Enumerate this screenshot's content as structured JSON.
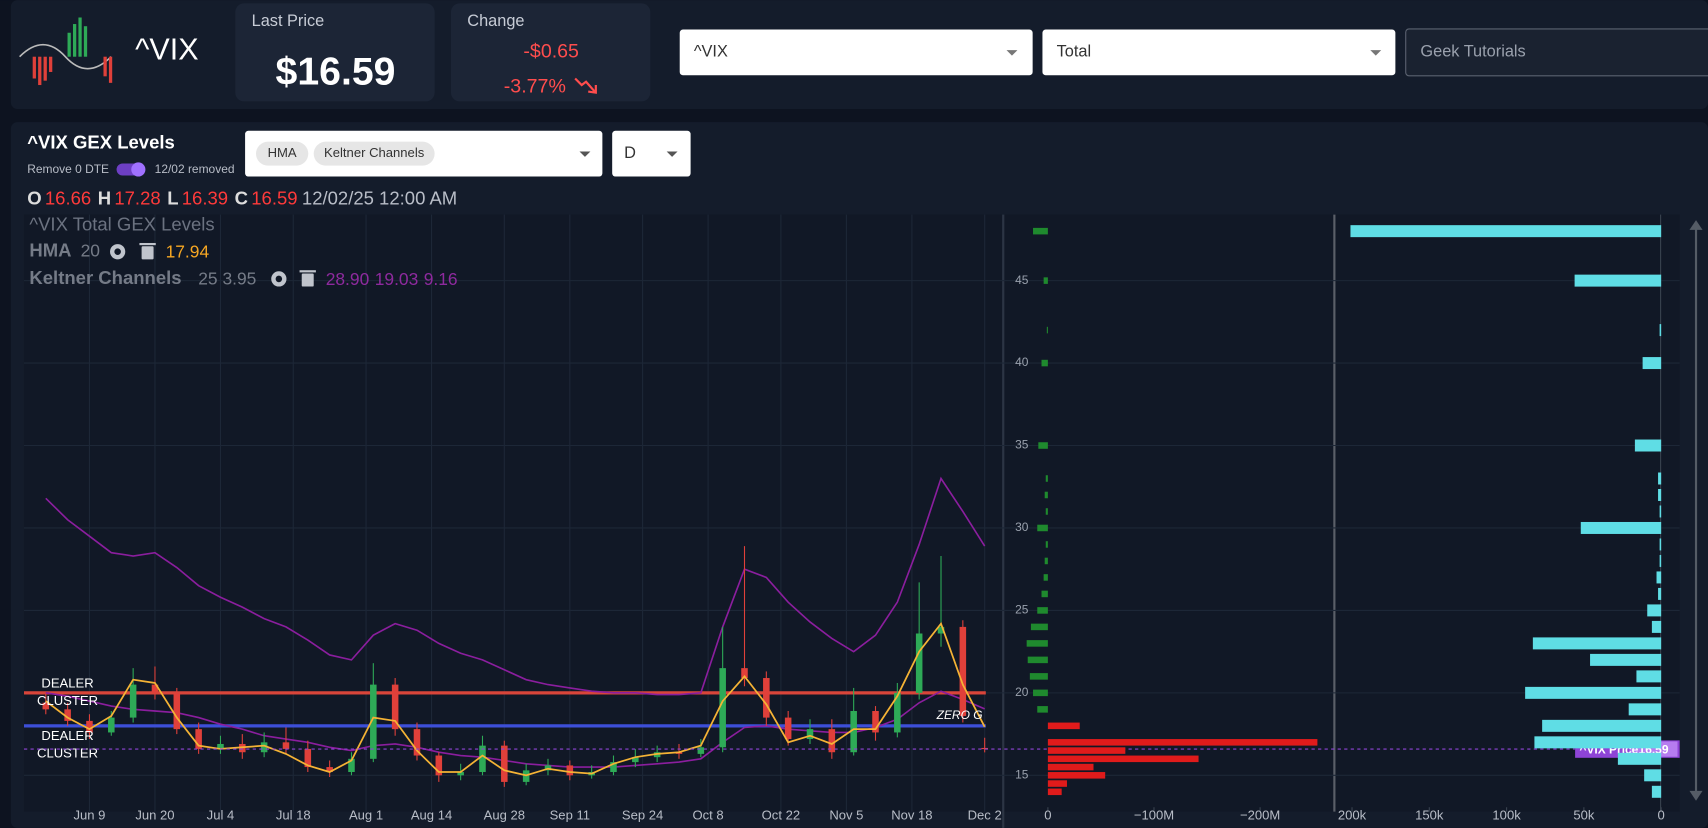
{
  "header": {
    "symbol": "^VIX",
    "last_price_label": "Last Price",
    "last_price": "$16.59",
    "change_label": "Change",
    "change": "-$0.65",
    "change_pct": "-3.77%",
    "symbol_select": "^VIX",
    "gex_select": "Total",
    "tutorials": "Geek Tutorials"
  },
  "panel": {
    "title": "^VIX GEX Levels",
    "toggle_label": "Remove 0 DTE",
    "toggle_note": "12/02 removed",
    "indicators": [
      "HMA",
      "Keltner Channels"
    ],
    "interval": "D"
  },
  "ohlc": {
    "labels": [
      "O",
      "H",
      "L",
      "C"
    ],
    "values": [
      16.66,
      17.28,
      16.39,
      16.59
    ],
    "date": "12/02/25 12:00 AM"
  },
  "legend": {
    "title": "^VIX Total GEX Levels",
    "hma": {
      "name": "HMA",
      "params": "20",
      "value": 17.94
    },
    "keltner": {
      "name": "Keltner Channels",
      "params": "25 3.95",
      "values": [
        28.9,
        19.03,
        9.16
      ],
      "value_labels": [
        "28.90",
        "19.03",
        "9.16"
      ]
    }
  },
  "price_chart": {
    "type": "candlestick",
    "x": [
      -6,
      -3,
      0,
      3,
      6,
      9,
      12,
      15,
      18,
      21,
      24,
      27,
      30,
      33,
      36,
      39,
      42,
      45,
      48,
      51,
      54,
      57,
      60,
      63,
      66,
      69,
      72,
      75,
      78,
      81,
      84,
      87,
      90,
      93,
      96,
      99,
      102,
      105,
      108,
      111,
      114,
      117,
      120,
      123
    ],
    "open": [
      19.4,
      19.0,
      18.3,
      17.6,
      18.5,
      20.5,
      20.0,
      17.8,
      16.6,
      16.9,
      16.4,
      17.0,
      16.6,
      15.5,
      15.2,
      16.0,
      20.5,
      17.8,
      16.2,
      15.0,
      15.2,
      16.8,
      14.6,
      15.3,
      15.6,
      15.0,
      15.2,
      15.8,
      16.1,
      16.4,
      16.3,
      16.7,
      21.5,
      20.9,
      18.5,
      17.2,
      17.8,
      16.4,
      18.9,
      17.6,
      20.0,
      23.6,
      24.0,
      16.66
    ],
    "high": [
      19.9,
      19.4,
      18.7,
      18.9,
      21.5,
      21.6,
      20.3,
      18.2,
      17.4,
      17.5,
      17.6,
      17.9,
      17.1,
      15.9,
      16.4,
      21.8,
      20.9,
      18.2,
      16.4,
      15.7,
      17.4,
      17.1,
      15.7,
      16.0,
      15.9,
      15.6,
      16.2,
      16.6,
      16.8,
      16.9,
      17.2,
      24.0,
      28.9,
      21.3,
      18.9,
      18.4,
      18.4,
      20.3,
      19.2,
      20.6,
      26.7,
      28.3,
      24.4,
      17.28
    ],
    "low": [
      18.7,
      18.0,
      17.2,
      17.4,
      18.2,
      19.6,
      17.5,
      16.3,
      16.3,
      16.0,
      16.1,
      16.3,
      15.2,
      14.9,
      15.0,
      15.8,
      17.4,
      15.9,
      14.6,
      14.7,
      15.0,
      14.3,
      14.4,
      15.0,
      14.7,
      14.8,
      15.0,
      15.5,
      15.8,
      16.0,
      16.1,
      16.4,
      20.4,
      18.0,
      16.8,
      16.9,
      16.0,
      16.2,
      17.1,
      17.3,
      19.6,
      22.8,
      18.2,
      16.39
    ],
    "close": [
      19.0,
      18.3,
      17.6,
      18.5,
      20.5,
      20.0,
      17.8,
      16.6,
      16.9,
      16.4,
      17.0,
      16.6,
      15.5,
      15.2,
      16.0,
      20.5,
      17.8,
      16.2,
      15.0,
      15.2,
      16.8,
      14.6,
      15.3,
      15.6,
      15.0,
      15.2,
      15.8,
      16.1,
      16.4,
      16.3,
      16.7,
      21.5,
      20.9,
      18.5,
      17.2,
      17.8,
      16.4,
      18.9,
      17.6,
      20.0,
      23.6,
      24.0,
      18.6,
      16.59
    ],
    "up_color": "#2eaa57",
    "down_color": "#e0403a",
    "hma": {
      "color": "#f5b335",
      "values": [
        19.5,
        18.5,
        17.8,
        18.6,
        20.8,
        20.6,
        18.5,
        16.8,
        16.6,
        16.7,
        16.8,
        16.3,
        15.6,
        15.2,
        15.9,
        18.5,
        18.3,
        16.5,
        15.2,
        15.2,
        16.2,
        15.3,
        15.0,
        15.4,
        15.2,
        15.1,
        15.7,
        16.1,
        16.3,
        16.4,
        16.8,
        19.5,
        21.0,
        19.3,
        17.0,
        17.4,
        16.9,
        17.8,
        17.8,
        19.8,
        22.5,
        24.2,
        20.5,
        17.94
      ]
    },
    "keltner_upper": {
      "color": "#8b1e9e",
      "values": [
        31.8,
        30.5,
        29.5,
        28.5,
        28.3,
        28.5,
        27.6,
        26.5,
        25.8,
        25.2,
        24.5,
        24.0,
        23.2,
        22.3,
        22.0,
        23.5,
        24.2,
        23.8,
        23.0,
        22.4,
        22.0,
        21.4,
        20.8,
        20.5,
        20.3,
        20.1,
        20.0,
        20.0,
        19.9,
        19.9,
        20.0,
        24.0,
        27.5,
        27.0,
        25.5,
        24.3,
        23.3,
        22.5,
        23.5,
        25.5,
        29.0,
        33.0,
        31.0,
        28.9
      ]
    },
    "keltner_middle": {
      "color": "#8b1e9e",
      "values": [
        20.0,
        19.8,
        19.5,
        19.2,
        19.0,
        18.9,
        18.8,
        18.5,
        18.1,
        17.8,
        17.4,
        17.2,
        17.0,
        16.7,
        16.5,
        16.8,
        16.9,
        16.7,
        16.4,
        16.2,
        16.1,
        15.9,
        15.7,
        15.6,
        15.5,
        15.5,
        15.5,
        15.6,
        15.7,
        15.8,
        16.0,
        17.0,
        17.9,
        18.0,
        17.8,
        17.7,
        17.6,
        17.6,
        17.9,
        18.4,
        19.4,
        20.1,
        19.6,
        19.03
      ]
    },
    "xlim": [
      -9,
      125.4
    ],
    "xticks": [
      {
        "value": 0,
        "label": "Jun 9"
      },
      {
        "value": 9,
        "label": "Jun 20"
      },
      {
        "value": 18,
        "label": "Jul 4"
      },
      {
        "value": 28,
        "label": "Jul 18"
      },
      {
        "value": 38,
        "label": "Aug 1"
      },
      {
        "value": 47,
        "label": "Aug 14"
      },
      {
        "value": 57,
        "label": "Aug 28"
      },
      {
        "value": 66,
        "label": "Sep 11"
      },
      {
        "value": 76,
        "label": "Sep 24"
      },
      {
        "value": 85,
        "label": "Oct 8"
      },
      {
        "value": 95,
        "label": "Oct 22"
      },
      {
        "value": 104,
        "label": "Nov 5"
      },
      {
        "value": 113,
        "label": "Nov 18"
      },
      {
        "value": 123,
        "label": "Dec 2"
      }
    ],
    "ylim": [
      12.8,
      49
    ],
    "yticks": [
      15,
      20,
      25,
      30,
      35,
      40,
      45
    ],
    "levels": [
      {
        "value": 20,
        "color": "#d9453a",
        "label": [
          "DEALER",
          "CLUSTER"
        ]
      },
      {
        "value": 18,
        "color": "#3d4fd8",
        "label": [
          "ZERO G"
        ]
      }
    ],
    "notes": [
      [
        "DEALER",
        "CLUSTER"
      ]
    ],
    "price_marker": {
      "label": "^VIX Price",
      "value": 16.59,
      "color": "#8e44d6"
    }
  },
  "gex": {
    "net": {
      "strikes": [
        48,
        45,
        42,
        40,
        35,
        33,
        32,
        31,
        30,
        29,
        28,
        27,
        26,
        25,
        24,
        23,
        22,
        21,
        20,
        19,
        18,
        17,
        16.5,
        16,
        15.5,
        15,
        14.5,
        14
      ],
      "values": [
        14000000,
        4000000,
        1000000,
        6000000,
        9000000,
        2000000,
        3000000,
        2000000,
        10000000,
        2000000,
        3000000,
        4000000,
        6000000,
        10000000,
        16000000,
        20000000,
        19000000,
        17000000,
        14000000,
        10000000,
        -30000000,
        -254000000,
        -73000000,
        -142000000,
        -43000000,
        -54000000,
        -18000000,
        -13000000
      ],
      "positive_color": "#1f8a2e",
      "negative_color": "#e01b1b",
      "xlim": [
        39000000,
        -270000000
      ],
      "xticks": [
        0,
        {
          "value": -100000000,
          "label": "−100M"
        },
        {
          "value": -200000000,
          "label": "−200M"
        }
      ]
    },
    "open_interest": {
      "strikes": [
        48,
        45,
        42,
        40,
        35,
        33,
        32,
        31,
        30,
        29,
        28,
        27,
        26,
        25,
        24,
        23,
        22,
        21,
        20,
        19,
        18,
        17,
        16,
        15,
        14
      ],
      "values": [
        201000,
        56000,
        1000,
        12000,
        17000,
        2000,
        2000,
        1000,
        52000,
        1000,
        1000,
        3000,
        2000,
        9000,
        6000,
        83000,
        46000,
        16000,
        88000,
        21000,
        77000,
        82000,
        28000,
        11000,
        6000
      ],
      "color": "#5fdde5",
      "xlim": [
        210000,
        0
      ],
      "xticks": [
        {
          "value": 200000,
          "label": "200k"
        },
        {
          "value": 150000,
          "label": "150k"
        },
        {
          "value": 100000,
          "label": "100k"
        },
        {
          "value": 50000,
          "label": "50k"
        },
        0
      ]
    }
  }
}
